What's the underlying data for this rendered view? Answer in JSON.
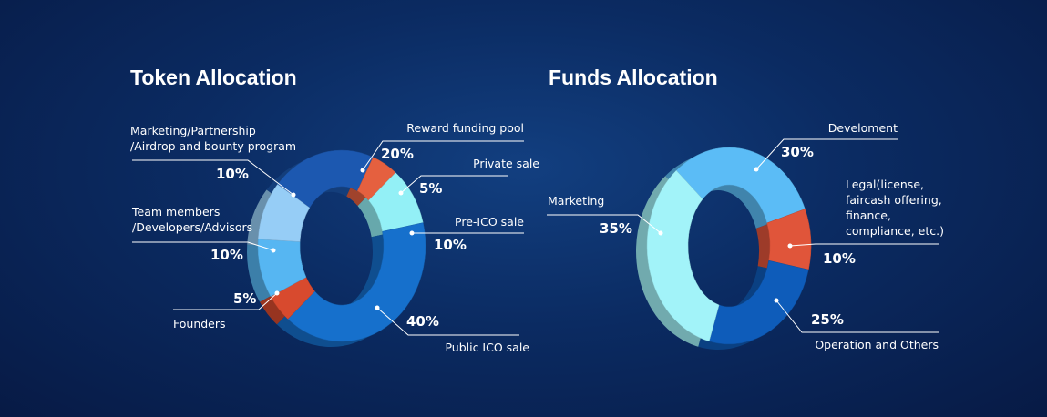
{
  "chart_data": [
    {
      "type": "pie",
      "title": "Token Allocation",
      "categories": [
        "Reward funding pool",
        "Private sale",
        "Pre-ICO sale",
        "Public ICO sale",
        "Founders",
        "Team members\n/Developers/Advisors",
        "Marketing/Partnership\n/Airdrop and bounty program"
      ],
      "values": [
        20,
        5,
        10,
        40,
        5,
        10,
        10
      ],
      "value_labels": [
        "20%",
        "5%",
        "10%",
        "40%",
        "5%",
        "10%",
        "10%"
      ],
      "colors": [
        "#1c58b0",
        "#e5603f",
        "#93f0f6",
        "#1670cc",
        "#d84a2e",
        "#56b6f2",
        "#96cdf6"
      ]
    },
    {
      "type": "pie",
      "title": "Funds Allocation",
      "categories": [
        "Develoment",
        "Legal(license,\nfaircash offering,\nfinance,\ncompliance, etc.)",
        "Operation and Others",
        "Marketing"
      ],
      "values": [
        30,
        10,
        25,
        35
      ],
      "value_labels": [
        "30%",
        "10%",
        "25%",
        "35%"
      ],
      "colors": [
        "#5bbcf6",
        "#e0553a",
        "#0e5cba",
        "#a2f3f9"
      ]
    }
  ]
}
